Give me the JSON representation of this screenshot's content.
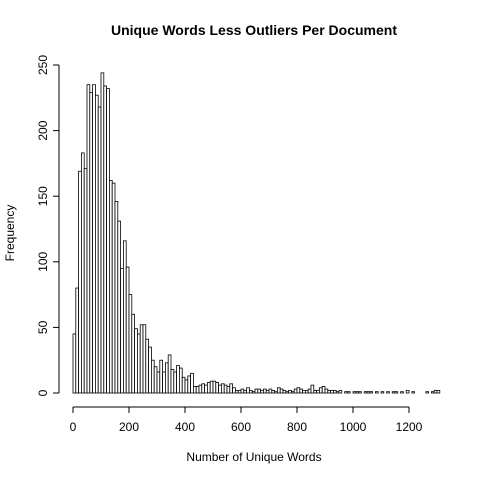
{
  "chart_data": {
    "type": "bar",
    "title": "Unique Words Less Outliers Per Document",
    "xlabel": "Number of Unique Words",
    "ylabel": "Frequency",
    "x_ticks": [
      0,
      200,
      400,
      600,
      800,
      1000,
      1200
    ],
    "y_ticks": [
      0,
      50,
      100,
      150,
      200,
      250
    ],
    "xlim": [
      0,
      1290
    ],
    "ylim": [
      0,
      250
    ],
    "bin_width": 10,
    "bin_start": 0,
    "values": [
      45,
      80,
      169,
      183,
      171,
      235,
      229,
      235,
      227,
      218,
      244,
      234,
      232,
      162,
      160,
      146,
      131,
      95,
      116,
      96,
      75,
      60,
      49,
      45,
      52,
      52,
      41,
      35,
      25,
      20,
      16,
      25,
      16,
      23,
      29,
      18,
      16,
      21,
      19,
      12,
      10,
      13,
      15,
      5,
      5,
      6,
      7,
      6,
      8,
      9,
      9,
      8,
      6,
      7,
      6,
      5,
      7,
      4,
      2,
      2,
      3,
      2,
      4,
      2,
      1,
      3,
      3,
      2,
      3,
      2,
      3,
      2,
      1,
      4,
      3,
      2,
      1,
      2,
      1,
      3,
      4,
      3,
      2,
      2,
      3,
      6,
      2,
      2,
      4,
      5,
      3,
      2,
      2,
      2,
      1,
      2,
      0,
      1,
      1,
      0,
      1,
      1,
      1,
      0,
      1,
      1,
      1,
      0,
      1,
      0,
      1,
      0,
      1,
      0,
      1,
      1,
      0,
      1,
      0,
      2,
      0,
      1,
      0,
      0,
      0,
      0,
      1,
      0,
      1,
      2,
      2
    ],
    "grid": false,
    "bar_color": "#ffffff",
    "edge_color": "#000000"
  }
}
